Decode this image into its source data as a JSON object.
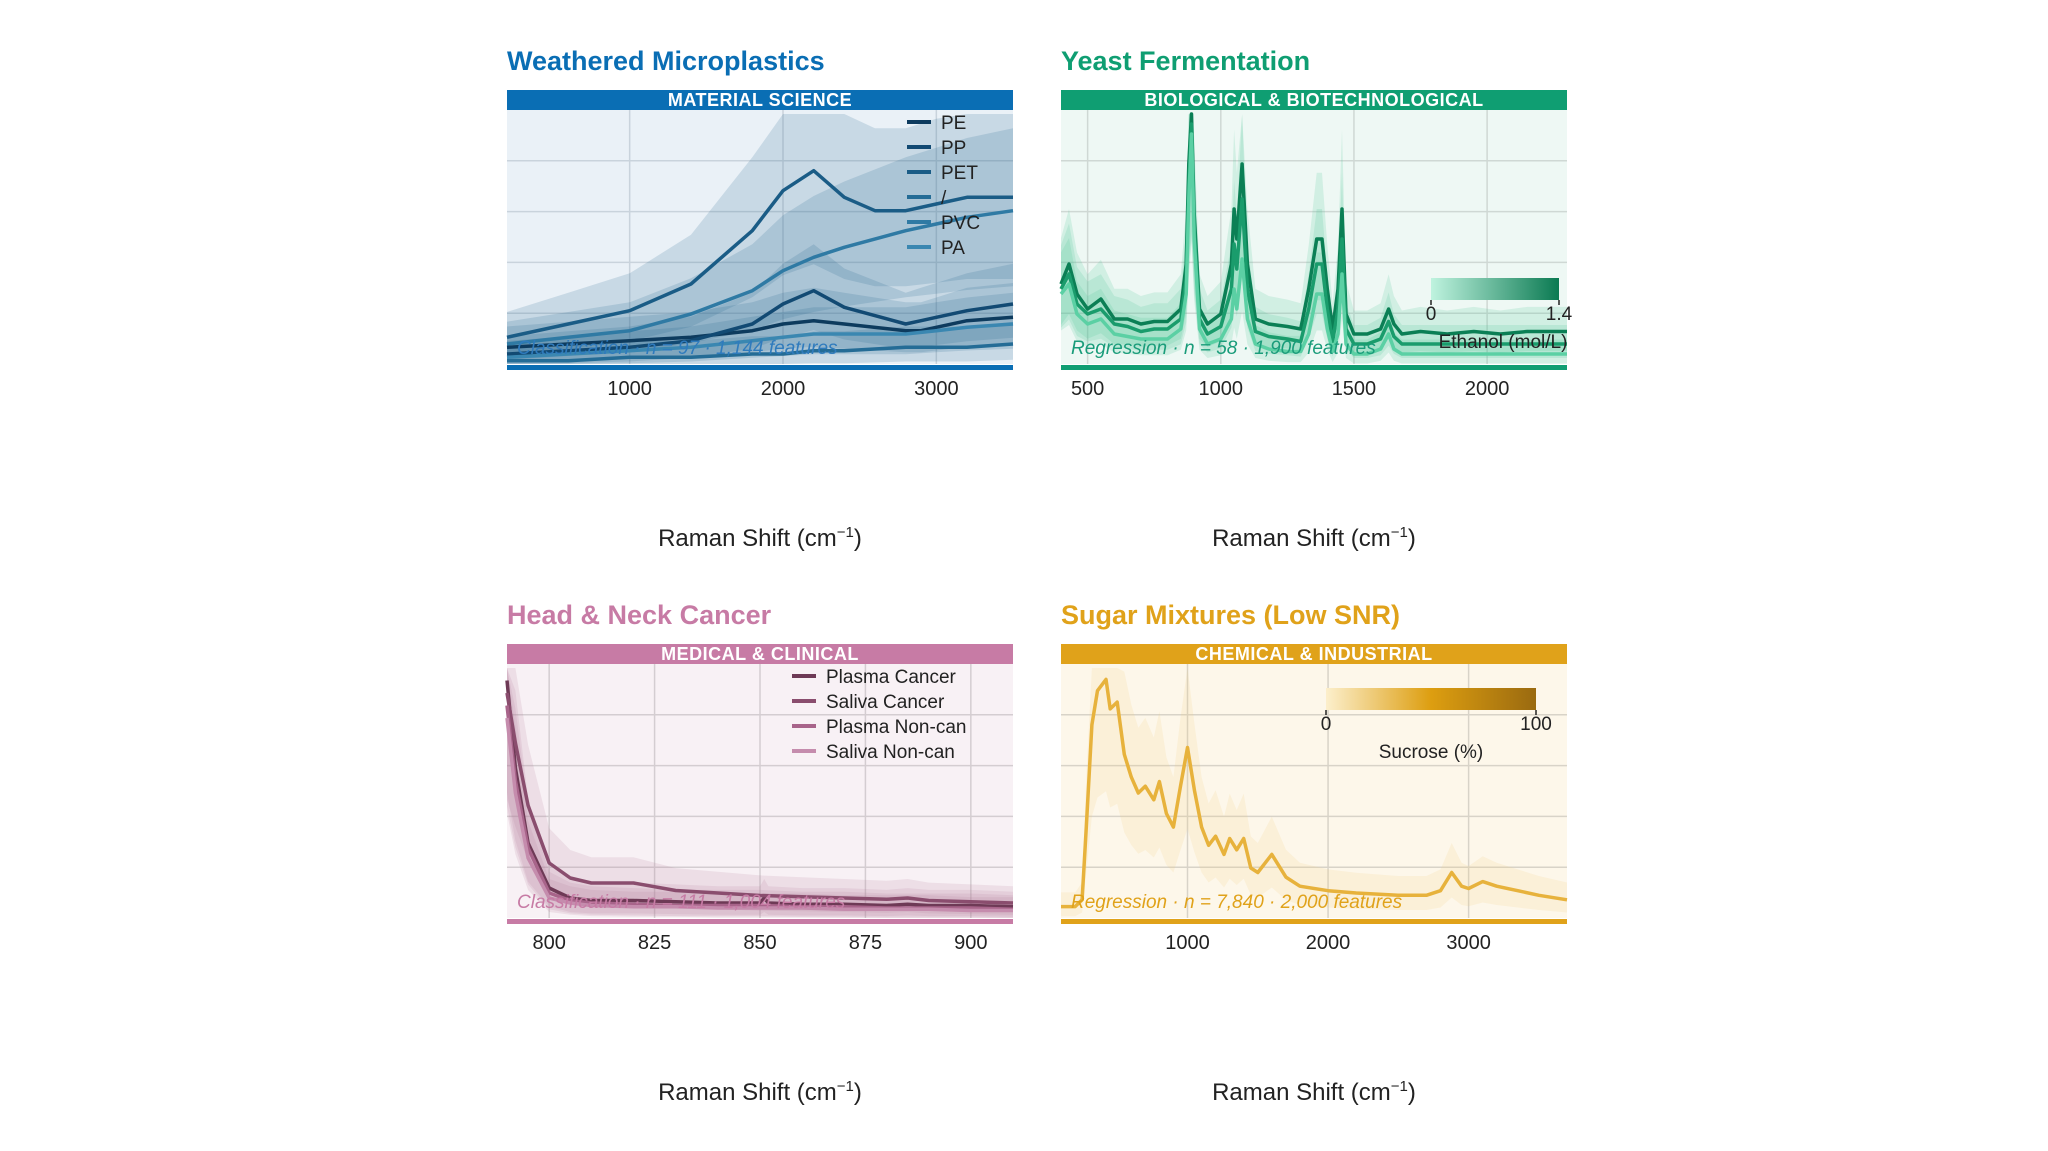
{
  "colors": {
    "blue": "#0a6eb4",
    "green": "#0f9e72",
    "pink": "#c77ba5",
    "orange": "#e0a21a"
  },
  "xaxis_label_prefix": "Raman Shift (cm",
  "xaxis_label_exp": "−1",
  "xaxis_label_suffix": ")",
  "chart_data": [
    {
      "id": "microplastics",
      "type": "line",
      "title": "Weathered Microplastics",
      "category": "MATERIAL SCIENCE",
      "footnote": "Classification  ·  n = 97  ·  1,144 features",
      "xlabel": "Raman Shift (cm−1)",
      "xlim": [
        200,
        3500
      ],
      "xticks": [
        1000,
        2000,
        3000
      ],
      "legend": [
        "PE",
        "PP",
        "PET",
        "/",
        "PVC",
        "PA"
      ],
      "series": [
        {
          "name": "PE",
          "x": [
            200,
            600,
            1000,
            1400,
            1800,
            2000,
            2200,
            2400,
            2800,
            2900,
            3000,
            3200,
            3500
          ],
          "y": [
            0.05,
            0.06,
            0.07,
            0.08,
            0.1,
            0.12,
            0.13,
            0.12,
            0.1,
            0.1,
            0.11,
            0.13,
            0.14
          ]
        },
        {
          "name": "PP",
          "x": [
            200,
            600,
            1000,
            1400,
            1800,
            2000,
            2200,
            2400,
            2800,
            2900,
            3000,
            3200,
            3500
          ],
          "y": [
            0.03,
            0.04,
            0.05,
            0.07,
            0.12,
            0.18,
            0.22,
            0.17,
            0.12,
            0.13,
            0.14,
            0.16,
            0.18
          ]
        },
        {
          "name": "PET",
          "x": [
            200,
            600,
            1000,
            1400,
            1800,
            2000,
            2200,
            2400,
            2600,
            2800,
            3000,
            3200,
            3500
          ],
          "y": [
            0.08,
            0.12,
            0.16,
            0.24,
            0.4,
            0.52,
            0.58,
            0.5,
            0.46,
            0.46,
            0.48,
            0.5,
            0.5
          ]
        },
        {
          "name": "/",
          "x": [
            200,
            600,
            1000,
            1400,
            1800,
            2000,
            2200,
            2400,
            2800,
            3000,
            3200,
            3500
          ],
          "y": [
            0.01,
            0.01,
            0.02,
            0.02,
            0.03,
            0.03,
            0.04,
            0.04,
            0.05,
            0.05,
            0.05,
            0.06
          ]
        },
        {
          "name": "PVC",
          "x": [
            200,
            600,
            1000,
            1400,
            1800,
            2000,
            2200,
            2400,
            2800,
            3000,
            3200,
            3500
          ],
          "y": [
            0.06,
            0.08,
            0.1,
            0.15,
            0.22,
            0.28,
            0.32,
            0.35,
            0.4,
            0.42,
            0.44,
            0.46
          ]
        },
        {
          "name": "PA",
          "x": [
            200,
            600,
            1000,
            1400,
            1800,
            2000,
            2200,
            2400,
            2800,
            3000,
            3200,
            3500
          ],
          "y": [
            0.02,
            0.03,
            0.04,
            0.05,
            0.07,
            0.08,
            0.09,
            0.09,
            0.09,
            0.1,
            0.11,
            0.12
          ]
        }
      ]
    },
    {
      "id": "yeast",
      "type": "line",
      "title": "Yeast Fermentation",
      "category": "BIOLOGICAL & BIOTECHNOLOGICAL",
      "footnote": "Regression  ·  n = 58  ·  1,900 features",
      "xlabel": "Raman Shift (cm−1)",
      "xlim": [
        400,
        2300
      ],
      "xticks": [
        500,
        1000,
        1500,
        2000
      ],
      "colorbar": {
        "label": "Ethanol (mol/L)",
        "min": "0",
        "max": "1.4"
      },
      "series": [
        {
          "name": "",
          "x": [
            400,
            430,
            460,
            500,
            550,
            600,
            650,
            700,
            750,
            800,
            850,
            870,
            880,
            890,
            900,
            920,
            950,
            1000,
            1040,
            1050,
            1060,
            1080,
            1100,
            1130,
            1180,
            1250,
            1300,
            1330,
            1360,
            1380,
            1400,
            1420,
            1440,
            1455,
            1470,
            1500,
            1550,
            1600,
            1630,
            1650,
            1680,
            1750,
            1850,
            1950,
            2050,
            2150,
            2300
          ],
          "y": [
            0.32,
            0.4,
            0.28,
            0.22,
            0.26,
            0.18,
            0.18,
            0.16,
            0.17,
            0.17,
            0.22,
            0.4,
            0.8,
            1.0,
            0.6,
            0.22,
            0.16,
            0.2,
            0.4,
            0.62,
            0.5,
            0.8,
            0.4,
            0.18,
            0.16,
            0.15,
            0.14,
            0.3,
            0.5,
            0.5,
            0.3,
            0.14,
            0.3,
            0.62,
            0.2,
            0.12,
            0.12,
            0.14,
            0.22,
            0.16,
            0.12,
            0.13,
            0.12,
            0.13,
            0.12,
            0.13,
            0.13
          ]
        },
        {
          "name": "",
          "x": [
            400,
            430,
            460,
            500,
            550,
            600,
            650,
            700,
            750,
            800,
            850,
            870,
            880,
            890,
            900,
            920,
            950,
            1000,
            1040,
            1050,
            1060,
            1080,
            1100,
            1130,
            1180,
            1250,
            1300,
            1330,
            1360,
            1380,
            1400,
            1420,
            1440,
            1455,
            1470,
            1500,
            1550,
            1600,
            1630,
            1650,
            1680,
            1750,
            1850,
            1950,
            2050,
            2150,
            2300
          ],
          "y": [
            0.3,
            0.36,
            0.24,
            0.2,
            0.22,
            0.16,
            0.15,
            0.13,
            0.14,
            0.14,
            0.18,
            0.34,
            0.72,
            0.96,
            0.55,
            0.18,
            0.12,
            0.15,
            0.3,
            0.48,
            0.38,
            0.66,
            0.3,
            0.13,
            0.11,
            0.1,
            0.09,
            0.22,
            0.4,
            0.4,
            0.22,
            0.09,
            0.22,
            0.5,
            0.14,
            0.08,
            0.08,
            0.1,
            0.17,
            0.11,
            0.08,
            0.08,
            0.08,
            0.08,
            0.08,
            0.08,
            0.08
          ]
        },
        {
          "name": "",
          "x": [
            400,
            430,
            460,
            500,
            550,
            600,
            650,
            700,
            750,
            800,
            850,
            870,
            880,
            890,
            900,
            920,
            950,
            1000,
            1040,
            1050,
            1060,
            1080,
            1100,
            1130,
            1180,
            1250,
            1300,
            1330,
            1360,
            1380,
            1400,
            1420,
            1440,
            1455,
            1470,
            1500,
            1550,
            1600,
            1630,
            1650,
            1680,
            1750,
            1850,
            1950,
            2050,
            2150,
            2300
          ],
          "y": [
            0.28,
            0.32,
            0.2,
            0.16,
            0.18,
            0.12,
            0.11,
            0.1,
            0.1,
            0.1,
            0.14,
            0.28,
            0.66,
            0.92,
            0.5,
            0.14,
            0.08,
            0.1,
            0.18,
            0.3,
            0.22,
            0.42,
            0.18,
            0.08,
            0.06,
            0.05,
            0.05,
            0.12,
            0.28,
            0.28,
            0.14,
            0.05,
            0.12,
            0.36,
            0.08,
            0.04,
            0.04,
            0.06,
            0.12,
            0.06,
            0.04,
            0.04,
            0.04,
            0.04,
            0.04,
            0.04,
            0.04
          ]
        }
      ]
    },
    {
      "id": "cancer",
      "type": "line",
      "title": "Head & Neck Cancer",
      "category": "MEDICAL & CLINICAL",
      "footnote": "Classification  ·  n = 111  ·  1,004 features",
      "xlabel": "Raman Shift (cm−1)",
      "xlim": [
        790,
        910
      ],
      "xticks": [
        800,
        825,
        850,
        875,
        900
      ],
      "legend": [
        "Plasma Cancer",
        "Saliva Cancer",
        "Plasma Non-can",
        "Saliva Non-can"
      ],
      "series": [
        {
          "name": "Plasma Cancer",
          "x": [
            790,
            792,
            795,
            800,
            805,
            810,
            820,
            830,
            840,
            850,
            851,
            852,
            860,
            870,
            880,
            885,
            890,
            900,
            910
          ],
          "y": [
            0.95,
            0.6,
            0.3,
            0.12,
            0.08,
            0.07,
            0.07,
            0.065,
            0.06,
            0.06,
            0.08,
            0.06,
            0.055,
            0.055,
            0.05,
            0.055,
            0.05,
            0.05,
            0.045
          ]
        },
        {
          "name": "Saliva Cancer",
          "x": [
            790,
            792,
            795,
            800,
            805,
            810,
            815,
            820,
            830,
            840,
            850,
            860,
            870,
            880,
            885,
            890,
            900,
            910
          ],
          "y": [
            0.9,
            0.7,
            0.45,
            0.22,
            0.16,
            0.14,
            0.14,
            0.14,
            0.11,
            0.1,
            0.09,
            0.085,
            0.08,
            0.075,
            0.08,
            0.07,
            0.065,
            0.06
          ]
        },
        {
          "name": "Plasma Non-can",
          "x": [
            790,
            792,
            795,
            800,
            805,
            810,
            820,
            830,
            840,
            850,
            860,
            870,
            880,
            890,
            900,
            910
          ],
          "y": [
            0.85,
            0.55,
            0.28,
            0.1,
            0.07,
            0.06,
            0.055,
            0.05,
            0.05,
            0.05,
            0.045,
            0.045,
            0.04,
            0.04,
            0.04,
            0.035
          ]
        },
        {
          "name": "Saliva Non-can",
          "x": [
            790,
            792,
            795,
            800,
            805,
            810,
            820,
            830,
            840,
            850,
            860,
            870,
            880,
            890,
            900,
            910
          ],
          "y": [
            0.8,
            0.5,
            0.24,
            0.08,
            0.06,
            0.05,
            0.045,
            0.045,
            0.04,
            0.04,
            0.04,
            0.035,
            0.035,
            0.035,
            0.03,
            0.03
          ]
        }
      ]
    },
    {
      "id": "sugar",
      "type": "line",
      "title": "Sugar Mixtures (Low SNR)",
      "category": "CHEMICAL & INDUSTRIAL",
      "footnote": "Regression  ·  n = 7,840  ·  2,000 features",
      "xlabel": "Raman Shift (cm−1)",
      "xlim": [
        100,
        3700
      ],
      "xticks": [
        1000,
        2000,
        3000
      ],
      "colorbar": {
        "label": "Sucrose (%)",
        "min": "0",
        "max": "100"
      },
      "series": [
        {
          "name": "",
          "x": [
            100,
            200,
            250,
            280,
            320,
            360,
            420,
            450,
            500,
            550,
            600,
            650,
            700,
            760,
            800,
            850,
            900,
            950,
            1000,
            1050,
            1100,
            1150,
            1200,
            1260,
            1300,
            1350,
            1400,
            1450,
            1500,
            1600,
            1700,
            1800,
            2000,
            2200,
            2500,
            2700,
            2800,
            2880,
            2950,
            3000,
            3100,
            3200,
            3350,
            3500,
            3700
          ],
          "y": [
            0.05,
            0.05,
            0.08,
            0.4,
            0.85,
            1.0,
            1.05,
            0.92,
            0.95,
            0.72,
            0.62,
            0.55,
            0.58,
            0.52,
            0.6,
            0.46,
            0.4,
            0.58,
            0.75,
            0.56,
            0.4,
            0.32,
            0.36,
            0.28,
            0.35,
            0.3,
            0.35,
            0.22,
            0.2,
            0.28,
            0.18,
            0.14,
            0.12,
            0.11,
            0.1,
            0.1,
            0.12,
            0.2,
            0.14,
            0.13,
            0.16,
            0.14,
            0.12,
            0.1,
            0.08
          ]
        }
      ]
    }
  ]
}
